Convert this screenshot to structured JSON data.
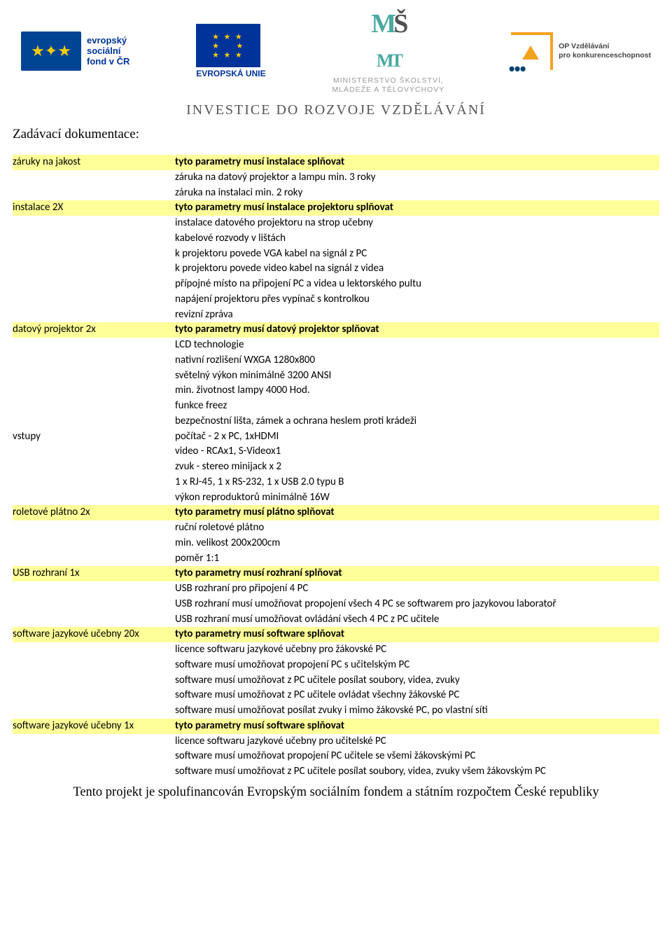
{
  "logos": {
    "esf_text": "evropský\nsociální\nfond v ČR",
    "eu_text": "EVROPSKÁ UNIE",
    "msmt_line1": "MINISTERSTVO ŠKOLSTVÍ,",
    "msmt_line2": "MLÁDEŽE A TĚLOVÝCHOVY",
    "op_title": "OP Vzdělávání",
    "op_sub": "pro konkurenceschopnost"
  },
  "motto": "INVESTICE DO ROZVOJE VZDĚLÁVÁNÍ",
  "doc_heading": "Zadávací dokumentace:",
  "rows": [
    {
      "left": "záruky na jakost",
      "right": "tyto parametry musí instalace splňovat",
      "shaded": true,
      "left_bold": false,
      "right_bold": true
    },
    {
      "left": "",
      "right": "záruka na datový projektor a lampu min. 3 roky"
    },
    {
      "left": "",
      "right": "záruka na instalaci min. 2 roky"
    },
    {
      "left": "instalace 2X",
      "right": "tyto parametry musí instalace projektoru splňovat",
      "shaded": true,
      "right_bold": true
    },
    {
      "left": "",
      "right": "instalace datového projektoru na strop učebny"
    },
    {
      "left": "",
      "right": "kabelové rozvody v lištách"
    },
    {
      "left": "",
      "right": "k projektoru povede VGA kabel na signál z PC"
    },
    {
      "left": "",
      "right": "k projektoru povede video kabel na signál z videa"
    },
    {
      "left": "",
      "right": "přípojné místo na připojení PC a videa u lektorského pultu"
    },
    {
      "left": "",
      "right": "napájení projektoru přes vypínač s kontrolkou"
    },
    {
      "left": "",
      "right": "revizní zpráva"
    },
    {
      "left": "datový projektor  2x",
      "right": "tyto parametry musí datový projektor splňovat",
      "shaded": true,
      "right_bold": true
    },
    {
      "left": "",
      "right": "LCD technologie"
    },
    {
      "left": "",
      "right": "nativní rozlišení WXGA 1280x800"
    },
    {
      "left": "",
      "right": "světelný výkon minimálně 3200 ANSI"
    },
    {
      "left": "",
      "right": "min. životnost lampy 4000 Hod."
    },
    {
      "left": "",
      "right": "funkce freez"
    },
    {
      "left": "",
      "right": "bezpečnostní lišta, zámek a ochrana heslem proti krádeži"
    },
    {
      "left": "vstupy",
      "right": "počítač - 2 x PC, 1xHDMI"
    },
    {
      "left": "",
      "right": "video - RCAx1, S-Videox1"
    },
    {
      "left": "",
      "right": "zvuk - stereo minijack x 2"
    },
    {
      "left": "",
      "right": "1 x RJ-45, 1 x RS-232, 1 x USB 2.0 typu B"
    },
    {
      "left": "",
      "right": "výkon reproduktorů minimálně 16W"
    },
    {
      "left": "roletové plátno 2x",
      "right": "tyto parametry musí plátno splňovat",
      "shaded": true,
      "right_bold": true
    },
    {
      "left": "",
      "right": "ruční roletové plátno"
    },
    {
      "left": "",
      "right": "min. velikost 200x200cm"
    },
    {
      "left": "",
      "right": "poměr 1:1"
    },
    {
      "left": "USB rozhraní 1x",
      "right": "tyto parametry musí rozhraní splňovat",
      "shaded": true,
      "right_bold": true
    },
    {
      "left": "",
      "right": "USB rozhraní pro připojení 4 PC"
    },
    {
      "left": "",
      "right": "USB rozhraní musí umožňovat propojení všech 4 PC se softwarem pro jazykovou laboratoř"
    },
    {
      "left": "",
      "right": "USB rozhraní musí umožňovat ovládání všech 4 PC z PC učitele"
    },
    {
      "left": "software jazykové učebny 20x",
      "right": "tyto parametry musí software splňovat",
      "shaded": true,
      "right_bold": true
    },
    {
      "left": "",
      "right": "licence softwaru  jazykové učebny pro žákovské PC"
    },
    {
      "left": "",
      "right": "software musí umožňovat propojení PC s učitelským PC"
    },
    {
      "left": "",
      "right": "software musí umožňovat z PC učitele posílat soubory, videa, zvuky"
    },
    {
      "left": "",
      "right": "software musí umožňovat z PC učitele ovládat všechny žákovské PC"
    },
    {
      "left": "",
      "right": "software musí umožňovat posílat zvuky i mimo žákovské PC, po vlastní síti"
    },
    {
      "left": "software jazykové učebny 1x",
      "right": "tyto parametry musí software splňovat",
      "shaded": true,
      "right_bold": true
    },
    {
      "left": "",
      "right": "licence softwaru jazykové učebny pro učitelské PC"
    },
    {
      "left": "",
      "right": "software musí umožňovat propojení PC učitele se všemi žákovskými PC"
    },
    {
      "left": "",
      "right": "software musí umožňovat z PC učitele posílat soubory, videa, zvuky všem žákovským PC"
    }
  ],
  "footer": "Tento projekt je spolufinancován Evropským sociálním fondem a státním rozpočtem České republiky",
  "colors": {
    "highlight_bg": "#ffff99",
    "eu_blue": "#003399",
    "eu_gold": "#f8cc0b",
    "op_orange": "#f3a220"
  }
}
